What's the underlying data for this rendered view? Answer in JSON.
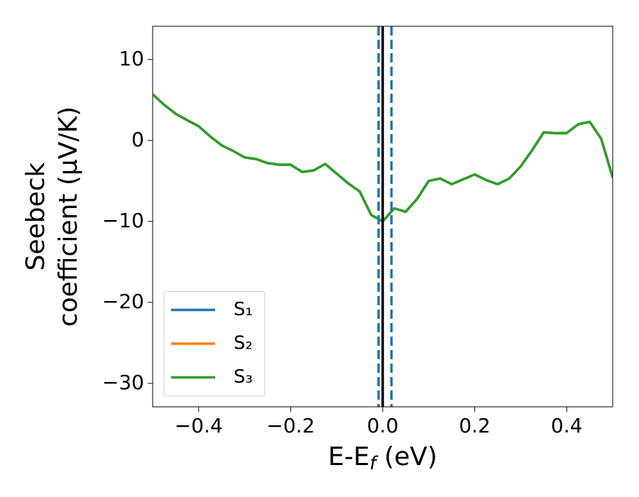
{
  "chart_data": {
    "type": "line",
    "xlabel": [
      "E-E",
      "f",
      " (eV)"
    ],
    "ylabel": [
      "Seebeck",
      "coefficient  (μV/K)"
    ],
    "x": [
      -0.5,
      -0.475,
      -0.45,
      -0.425,
      -0.4,
      -0.375,
      -0.35,
      -0.325,
      -0.3,
      -0.275,
      -0.25,
      -0.225,
      -0.2,
      -0.175,
      -0.15,
      -0.125,
      -0.1,
      -0.075,
      -0.05,
      -0.025,
      0,
      0.025,
      0.05,
      0.075,
      0.1,
      0.125,
      0.15,
      0.175,
      0.2,
      0.225,
      0.25,
      0.275,
      0.3,
      0.325,
      0.35,
      0.375,
      0.4,
      0.425,
      0.45,
      0.475,
      0.5
    ],
    "series": [
      {
        "name": "S₁",
        "color": "#1f77b4",
        "values": [
          5.7,
          4.4,
          3.3,
          2.5,
          1.75,
          0.5,
          -0.6,
          -1.3,
          -2.1,
          -2.3,
          -2.8,
          -3.0,
          -3.0,
          -3.9,
          -3.7,
          -2.9,
          -4.1,
          -5.3,
          -6.3,
          -9.2,
          -10.0,
          -8.4,
          -8.8,
          -7.2,
          -5.0,
          -4.7,
          -5.4,
          -4.8,
          -4.2,
          -4.9,
          -5.4,
          -4.7,
          -3.2,
          -1.2,
          1.0,
          0.9,
          0.9,
          2.0,
          2.3,
          0.2,
          -4.6
        ]
      },
      {
        "name": "S₂",
        "color": "#ff7f0e",
        "values": [
          5.7,
          4.4,
          3.3,
          2.5,
          1.75,
          0.5,
          -0.6,
          -1.3,
          -2.1,
          -2.3,
          -2.8,
          -3.0,
          -3.0,
          -3.9,
          -3.7,
          -2.9,
          -4.1,
          -5.3,
          -6.3,
          -9.2,
          -10.0,
          -8.4,
          -8.8,
          -7.2,
          -5.0,
          -4.7,
          -5.4,
          -4.8,
          -4.2,
          -4.9,
          -5.4,
          -4.7,
          -3.2,
          -1.2,
          1.0,
          0.9,
          0.9,
          2.0,
          2.3,
          0.2,
          -4.6
        ]
      },
      {
        "name": "S₃",
        "color": "#2ca02c",
        "values": [
          5.7,
          4.4,
          3.3,
          2.5,
          1.75,
          0.5,
          -0.6,
          -1.3,
          -2.1,
          -2.3,
          -2.8,
          -3.0,
          -3.0,
          -3.9,
          -3.7,
          -2.9,
          -4.1,
          -5.3,
          -6.3,
          -9.2,
          -10.0,
          -8.4,
          -8.8,
          -7.2,
          -5.0,
          -4.7,
          -5.4,
          -4.8,
          -4.2,
          -4.9,
          -5.4,
          -4.7,
          -3.2,
          -1.2,
          1.0,
          0.9,
          0.9,
          2.0,
          2.3,
          0.2,
          -4.6
        ]
      }
    ],
    "vlines": [
      {
        "x": -0.009,
        "color": "#1f77b4",
        "style": "dashed"
      },
      {
        "x": 0.019,
        "color": "#1f77b4",
        "style": "dashed"
      },
      {
        "x": 0,
        "color": "#000000",
        "style": "solid"
      }
    ],
    "xlim": [
      -0.5,
      0.5
    ],
    "ylim": [
      -32.9,
      14.1
    ],
    "xticks": [
      {
        "value": -0.4,
        "label": "−0.4"
      },
      {
        "value": -0.2,
        "label": "−0.2"
      },
      {
        "value": 0,
        "label": "0.0"
      },
      0.2,
      0.4
    ],
    "yticks": [
      {
        "value": -30,
        "label": "−30"
      },
      {
        "value": -20,
        "label": "−20"
      },
      {
        "value": -10,
        "label": "−10"
      },
      0,
      10
    ],
    "grid": false,
    "legend": "lower left"
  }
}
